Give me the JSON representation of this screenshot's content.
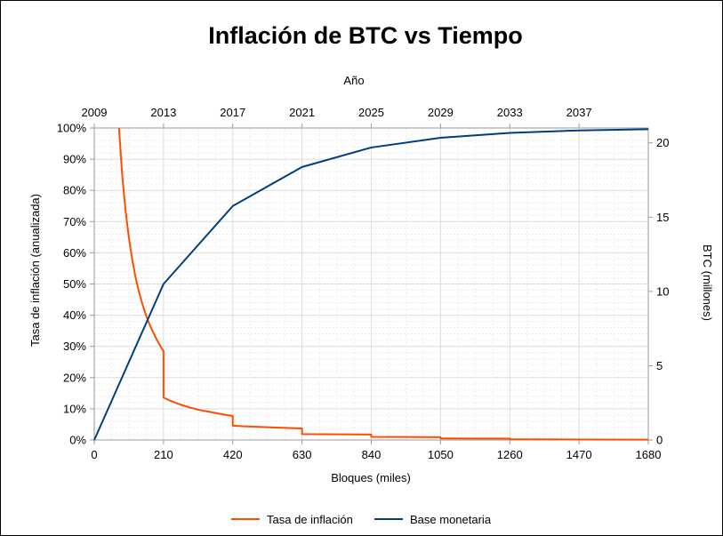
{
  "chart_data": {
    "type": "line",
    "title": "Inflación de BTC vs Tiempo",
    "top_axis_label": "Año",
    "top_ticks": [
      "2009",
      "2013",
      "2017",
      "2021",
      "2025",
      "2029",
      "2033",
      "2037"
    ],
    "xlabel": "Bloques (miles)",
    "x_ticks": [
      "0",
      "210",
      "420",
      "630",
      "840",
      "1050",
      "1260",
      "1470",
      "1680"
    ],
    "xlim": [
      0,
      1680
    ],
    "ylabel_left": "Tasa de inflación (anualizada)",
    "y_left_ticks": [
      "0%",
      "10%",
      "20%",
      "30%",
      "40%",
      "50%",
      "60%",
      "70%",
      "80%",
      "90%",
      "100%"
    ],
    "ylim_left": [
      0,
      100
    ],
    "ylabel_right": "BTC (millones)",
    "y_right_ticks": [
      "0",
      "5",
      "10",
      "15",
      "20"
    ],
    "ylim_right": [
      0,
      21
    ],
    "grid": true,
    "legend_position": "bottom",
    "series": [
      {
        "name": "Tasa de inflación",
        "axis": "left",
        "color": "#ff4d00",
        "x": [
          75,
          85,
          95,
          105,
          115,
          125,
          135,
          145,
          155,
          165,
          175,
          185,
          195,
          205,
          209.9,
          210,
          230,
          260,
          290,
          320,
          350,
          380,
          419.9,
          420,
          450,
          500,
          550,
          600,
          629.9,
          630,
          700,
          760,
          839.9,
          840,
          950,
          1049.9,
          1050,
          1150,
          1259.9,
          1260,
          1470,
          1680
        ],
        "y": [
          100,
          84.5,
          73.4,
          64.8,
          57.9,
          52.3,
          47.7,
          43.9,
          40.6,
          37.7,
          35.3,
          33.1,
          31.1,
          29.3,
          28.6,
          13.6,
          12.6,
          11.4,
          10.4,
          9.6,
          9.0,
          8.4,
          7.7,
          4.6,
          4.4,
          4.2,
          4.0,
          3.8,
          3.7,
          1.9,
          1.85,
          1.8,
          1.75,
          1.0,
          0.95,
          0.9,
          0.5,
          0.48,
          0.45,
          0.25,
          0.15,
          0.1
        ]
      },
      {
        "name": "Base monetaria",
        "axis": "right",
        "color": "#003e7e",
        "x": [
          0,
          210,
          420,
          630,
          840,
          1050,
          1260,
          1470,
          1680
        ],
        "y": [
          0,
          10.5,
          15.75,
          18.375,
          19.6875,
          20.34375,
          20.671875,
          20.8359375,
          20.91796875
        ]
      }
    ]
  }
}
